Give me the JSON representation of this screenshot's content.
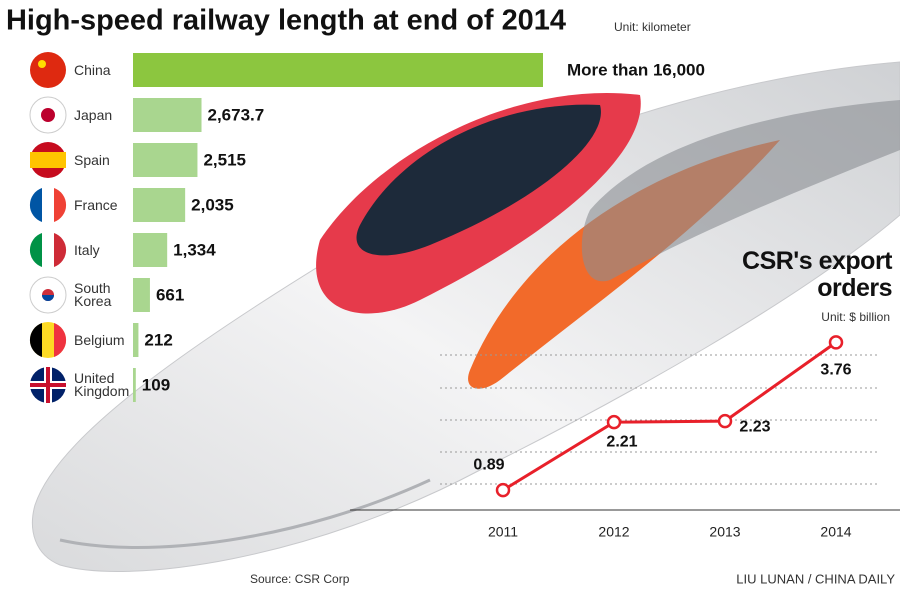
{
  "chart_data": [
    {
      "type": "hbar",
      "title": "High-speed railway length at end of 2014",
      "subtitle": "Unit: kilometer",
      "categories": [
        "China",
        "Japan",
        "Spain",
        "France",
        "Italy",
        "South Korea",
        "Belgium",
        "United Kingdom"
      ],
      "values": [
        16000,
        2673.7,
        2515,
        2035,
        1334,
        661,
        212,
        109
      ],
      "value_labels": [
        "More than 16,000",
        "2,673.7",
        "2,515",
        "2,035",
        "1,334",
        "661",
        "212",
        "109"
      ],
      "colors": [
        "#8cc63f",
        "#a9d68f",
        "#a9d68f",
        "#a9d68f",
        "#a9d68f",
        "#a9d68f",
        "#a9d68f",
        "#a9d68f"
      ]
    },
    {
      "type": "line",
      "title": "CSR's export orders",
      "subtitle": "Unit: $ billion",
      "categories": [
        "2011",
        "2012",
        "2013",
        "2014"
      ],
      "values": [
        0.89,
        2.21,
        2.23,
        3.76
      ],
      "color": "#e8202a"
    }
  ],
  "source": "Source: CSR Corp",
  "credit": "LIU LUNAN / CHINA DAILY"
}
